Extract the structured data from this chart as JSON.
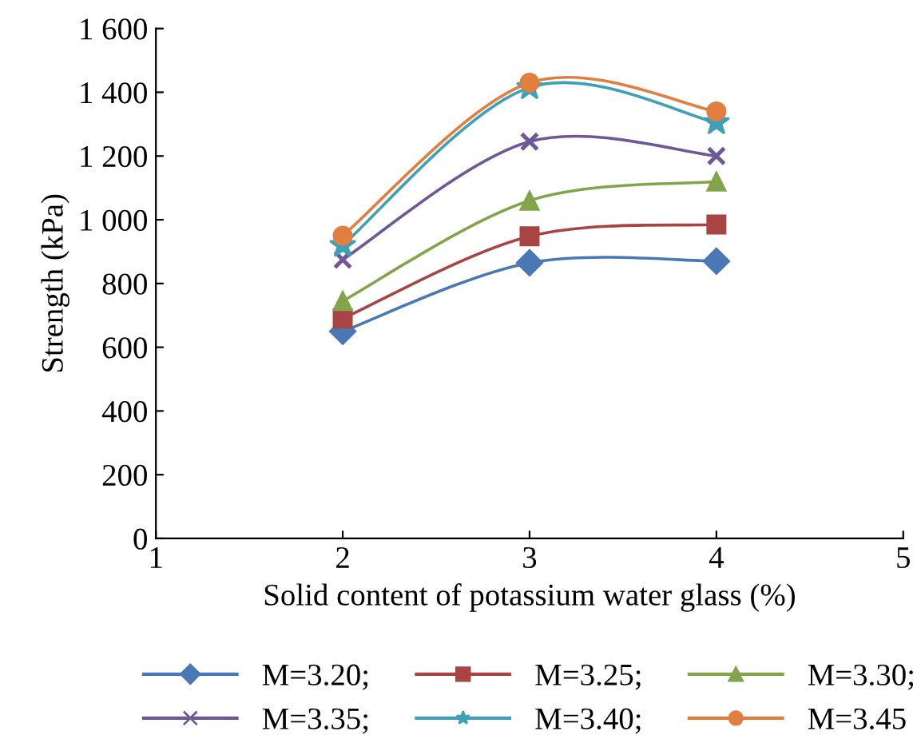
{
  "chart_data": {
    "type": "line",
    "xlabel": "Solid content of potassium water glass (%)",
    "ylabel": "Strength (kPa)",
    "xlim": [
      1,
      5
    ],
    "xticks": [
      1,
      2,
      3,
      4,
      5
    ],
    "ylim": [
      0,
      1600
    ],
    "yticks": [
      0,
      200,
      400,
      600,
      800,
      {
        "value": 1000,
        "label": "1 000"
      },
      {
        "value": 1200,
        "label": "1 200"
      },
      {
        "value": 1400,
        "label": "1 400"
      },
      {
        "value": 1600,
        "label": "1 600"
      }
    ],
    "x": [
      2,
      3,
      4
    ],
    "grid": false,
    "legend": "bottom",
    "line_style": "solid",
    "series": [
      {
        "name": "M=3.20;",
        "color": "#4a78b4",
        "marker": "diamond",
        "values": [
          650,
          865,
          870
        ]
      },
      {
        "name": "M=3.25;",
        "color": "#a84444",
        "marker": "square",
        "values": [
          690,
          948,
          985
        ]
      },
      {
        "name": "M=3.30;",
        "color": "#82a44a",
        "marker": "triangle",
        "values": [
          745,
          1060,
          1120
        ]
      },
      {
        "name": "M=3.35;",
        "color": "#6e5896",
        "marker": "cross",
        "values": [
          875,
          1245,
          1200
        ]
      },
      {
        "name": "M=3.40;",
        "color": "#3fa0b8",
        "marker": "star",
        "values": [
          920,
          1415,
          1305
        ]
      },
      {
        "name": "M=3.45",
        "color": "#e07f40",
        "marker": "circle",
        "values": [
          950,
          1430,
          1340
        ]
      }
    ]
  }
}
